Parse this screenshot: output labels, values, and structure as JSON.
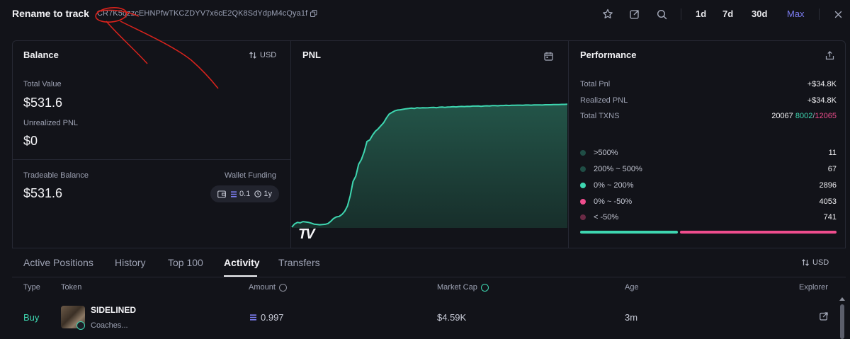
{
  "header": {
    "wallet_name": "Rename to track",
    "address": "CR7K5qzzcEHNPfwTKCZDYV7x6cE2QK8SdYdpM4cQya1f",
    "ranges": [
      "1d",
      "7d",
      "30d",
      "Max"
    ],
    "active_range": "Max"
  },
  "balance": {
    "title": "Balance",
    "currency_toggle": "USD",
    "total_value_label": "Total Value",
    "total_value": "$531.6",
    "unrealized_label": "Unrealized PNL",
    "unrealized_value": "$0",
    "tradeable_label": "Tradeable Balance",
    "tradeable_value": "$531.6",
    "funding_label": "Wallet Funding",
    "funding_amount": "0.1",
    "funding_age": "1y"
  },
  "pnl": {
    "title": "PNL",
    "watermark": "TV"
  },
  "chart_data": {
    "type": "area",
    "title": "PNL",
    "x": [
      0,
      1,
      2,
      3,
      4,
      5,
      6,
      7,
      8,
      9,
      10,
      11,
      12,
      13,
      14,
      15,
      16,
      17,
      18,
      19,
      20,
      21,
      22,
      23,
      24,
      25,
      26,
      27,
      28,
      29,
      30,
      31,
      32,
      33,
      34,
      35,
      36,
      37,
      38,
      39,
      40,
      41,
      42,
      43,
      44,
      45,
      46,
      47,
      48,
      49,
      50,
      51,
      52,
      53,
      54,
      55,
      56,
      57,
      58,
      59,
      60,
      61,
      62,
      63,
      64,
      65,
      66,
      67,
      68,
      69,
      70,
      71,
      72,
      73,
      74,
      75,
      76,
      77,
      78,
      79,
      80,
      81,
      82,
      83,
      84,
      85,
      86,
      87,
      88,
      89,
      90,
      91,
      92,
      93,
      94,
      95,
      96,
      97,
      98,
      99
    ],
    "values": [
      0.5,
      2.5,
      3.5,
      3.2,
      4.0,
      3.8,
      3.5,
      3.0,
      2.4,
      2.2,
      2.0,
      2.1,
      2.3,
      2.8,
      4.2,
      6.0,
      7.0,
      7.3,
      8.5,
      10.6,
      14.0,
      20.5,
      29.5,
      33.0,
      40.5,
      43.5,
      48.5,
      55.0,
      56.0,
      59.0,
      61.5,
      63.0,
      65.0,
      67.0,
      70.0,
      72.5,
      73.5,
      74.5,
      75.0,
      75.2,
      75.5,
      75.8,
      76.0,
      76.2,
      76.0,
      76.5,
      76.3,
      76.5,
      76.4,
      76.5,
      76.6,
      76.7,
      76.5,
      76.8,
      76.9,
      76.7,
      76.9,
      77.0,
      77.1,
      77.0,
      77.2,
      77.3,
      77.2,
      77.4,
      77.3,
      77.5,
      77.5,
      77.6,
      77.4,
      77.6,
      77.7,
      77.6,
      77.8,
      77.8,
      77.7,
      77.9,
      77.9,
      78.0,
      77.9,
      78.0,
      78.0,
      78.1,
      78.1,
      78.0,
      78.2,
      78.2,
      78.1,
      78.3,
      78.3,
      78.3,
      78.2,
      78.4,
      78.4,
      78.4,
      78.5,
      78.5,
      78.5,
      78.6,
      78.6,
      78.7
    ],
    "grid": false,
    "fill_color": "#1d4a3f",
    "line_color": "#3ed6b0"
  },
  "performance": {
    "title": "Performance",
    "total_pnl_label": "Total Pnl",
    "total_pnl": "+$34.8K",
    "realized_label": "Realized PNL",
    "realized": "+$34.8K",
    "txns_label": "Total TXNS",
    "txns_total": "20067",
    "txns_buys": "8002",
    "txns_sells": "12065",
    "buckets": [
      {
        "label": ">500%",
        "count": "11",
        "color": "#1f4d45"
      },
      {
        "label": "200% ~ 500%",
        "count": "67",
        "color": "#1f4d45"
      },
      {
        "label": "0% ~ 200%",
        "count": "2896",
        "color": "#3ed6b0"
      },
      {
        "label": "0% ~ -50%",
        "count": "4053",
        "color": "#ef4d8d"
      },
      {
        "label": "< -50%",
        "count": "741",
        "color": "#6a2a45"
      }
    ],
    "win_fraction": 0.385
  },
  "tabs": {
    "items": [
      "Active Positions",
      "History",
      "Top 100",
      "Activity",
      "Transfers"
    ],
    "active": "Activity",
    "currency_toggle": "USD"
  },
  "table": {
    "columns": [
      "Type",
      "Token",
      "Amount",
      "Market Cap",
      "Age",
      "Explorer"
    ],
    "rows": [
      {
        "type": "Buy",
        "token_name": "SIDELINED",
        "token_sub": "Coaches...",
        "amount": "0.997",
        "market_cap": "$4.59K",
        "age": "3m"
      }
    ]
  },
  "colors": {
    "background": "#121319",
    "accent": "#7b7cf0",
    "positive": "#3ed6b0",
    "negative": "#ef4d8d",
    "annotation": "#d8231c"
  }
}
